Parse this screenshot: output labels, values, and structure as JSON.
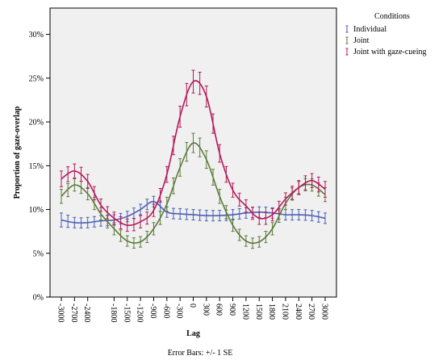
{
  "chart_data": {
    "type": "line",
    "xlabel": "Lag",
    "ylabel": "Proportion of gaze-overlap",
    "footnote": "Error Bars: +/- 1 SE",
    "legend_title": "Conditions",
    "legend_position": "top-right",
    "grid": false,
    "xlim": [
      -3000,
      3000
    ],
    "ylim": [
      0,
      0.33
    ],
    "x_ticks": [
      -3000,
      -2700,
      -2400,
      -1800,
      -1500,
      -1200,
      -900,
      -600,
      -300,
      0,
      300,
      600,
      900,
      1200,
      1500,
      1800,
      2100,
      2400,
      2700,
      3000
    ],
    "x_tick_labels": [
      "-3000",
      "-2700",
      "-2400",
      "-1800",
      "-1500",
      "-1200",
      "-900",
      "-600",
      "-300",
      "0",
      "300",
      "600",
      "900",
      "1200",
      "1500",
      "1800",
      "2100",
      "2400",
      "2700",
      "3000"
    ],
    "y_ticks": [
      0,
      0.05,
      0.1,
      0.15,
      0.2,
      0.25,
      0.3
    ],
    "y_tick_labels": [
      "0%",
      "5%",
      "10%",
      "15%",
      "20%",
      "25%",
      "30%"
    ],
    "colors": {
      "plot_background": "#f0f0f0",
      "Individual": "#4a5fb5",
      "Joint": "#5a7a3a",
      "Joint with gaze-cueing": "#b5185a"
    },
    "series": [
      {
        "name": "Individual",
        "x": [
          -3000,
          -2700,
          -2400,
          -2100,
          -1800,
          -1500,
          -1200,
          -900,
          -600,
          -300,
          0,
          300,
          600,
          900,
          1200,
          1500,
          1800,
          2100,
          2400,
          2700,
          3000
        ],
        "values": [
          0.088,
          0.085,
          0.085,
          0.087,
          0.088,
          0.092,
          0.1,
          0.109,
          0.097,
          0.095,
          0.094,
          0.093,
          0.093,
          0.094,
          0.096,
          0.097,
          0.096,
          0.094,
          0.094,
          0.093,
          0.09
        ],
        "se": [
          0.008,
          0.006,
          0.006,
          0.006,
          0.006,
          0.006,
          0.006,
          0.006,
          0.006,
          0.006,
          0.006,
          0.006,
          0.006,
          0.006,
          0.006,
          0.006,
          0.006,
          0.006,
          0.006,
          0.006,
          0.006
        ]
      },
      {
        "name": "Joint",
        "x": [
          -3000,
          -2700,
          -2400,
          -2100,
          -1800,
          -1500,
          -1200,
          -900,
          -600,
          -300,
          0,
          300,
          600,
          900,
          1200,
          1500,
          1800,
          2100,
          2400,
          2700,
          3000
        ],
        "values": [
          0.115,
          0.128,
          0.118,
          0.095,
          0.078,
          0.064,
          0.063,
          0.078,
          0.106,
          0.148,
          0.176,
          0.157,
          0.115,
          0.082,
          0.064,
          0.063,
          0.078,
          0.107,
          0.125,
          0.128,
          0.117
        ],
        "se": [
          0.008,
          0.007,
          0.007,
          0.007,
          0.007,
          0.006,
          0.006,
          0.007,
          0.008,
          0.01,
          0.011,
          0.01,
          0.008,
          0.007,
          0.006,
          0.006,
          0.007,
          0.007,
          0.007,
          0.007,
          0.008
        ]
      },
      {
        "name": "Joint with gaze-cueing",
        "x": [
          -3000,
          -2700,
          -2400,
          -2100,
          -1800,
          -1500,
          -1200,
          -900,
          -600,
          -300,
          0,
          300,
          600,
          900,
          1200,
          1500,
          1800,
          2100,
          2400,
          2700,
          3000
        ],
        "values": [
          0.135,
          0.144,
          0.132,
          0.105,
          0.09,
          0.082,
          0.086,
          0.099,
          0.14,
          0.206,
          0.246,
          0.229,
          0.164,
          0.122,
          0.104,
          0.09,
          0.094,
          0.112,
          0.125,
          0.133,
          0.123
        ],
        "se": [
          0.009,
          0.008,
          0.008,
          0.007,
          0.007,
          0.007,
          0.007,
          0.007,
          0.009,
          0.012,
          0.013,
          0.012,
          0.01,
          0.008,
          0.007,
          0.007,
          0.007,
          0.007,
          0.008,
          0.008,
          0.009
        ]
      }
    ]
  }
}
